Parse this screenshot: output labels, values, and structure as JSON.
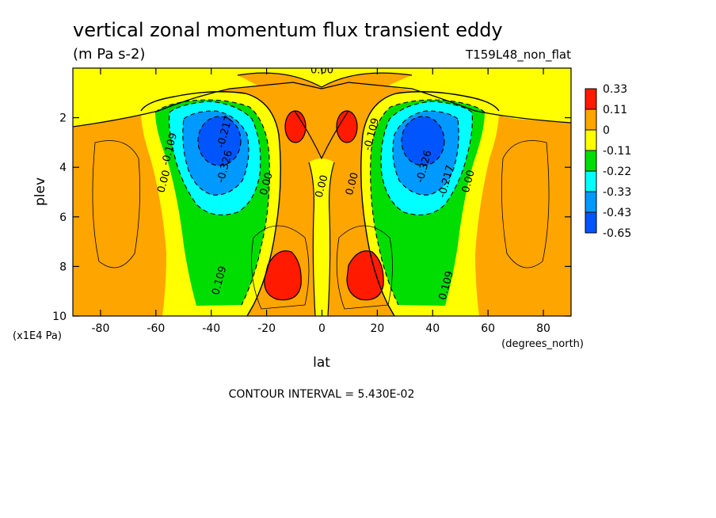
{
  "chart_data": {
    "type": "heatmap",
    "title": "vertical zonal momentum flux transient eddy",
    "units": "(m Pa s-2)",
    "run_label": "T159L48_non_flat",
    "xlabel": "lat",
    "ylabel": "plev",
    "x_units": "(degrees_north)",
    "y_units": "(x1E4 Pa)",
    "xlim": [
      -90,
      90
    ],
    "ylim": [
      10,
      0
    ],
    "x_ticks": [
      -80,
      -60,
      -40,
      -20,
      0,
      20,
      40,
      60,
      80
    ],
    "y_ticks": [
      2,
      4,
      6,
      8,
      10
    ],
    "contour_interval_text": "CONTOUR INTERVAL = 5.430E-02",
    "colorbar": {
      "labels": [
        "0.33",
        "0.11",
        "0",
        "-0.11",
        "-0.22",
        "-0.33",
        "-0.43",
        "-0.65"
      ],
      "colors": [
        "#ff1a00",
        "#ffa500",
        "#ffff00",
        "#00dd00",
        "#00ffff",
        "#0099ff",
        "#0055ff"
      ]
    },
    "contour_labels": [
      {
        "text": "0.00",
        "lat": 0,
        "plev": 0.2
      },
      {
        "text": "-0.109",
        "lat": -54,
        "plev": 3.3
      },
      {
        "text": "0.00",
        "lat": -56,
        "plev": 4.6
      },
      {
        "text": "-0.217",
        "lat": -34,
        "plev": 2.6
      },
      {
        "text": "-0.326",
        "lat": -34,
        "plev": 4.0
      },
      {
        "text": "0.00",
        "lat": -19,
        "plev": 4.7
      },
      {
        "text": "0.00",
        "lat": 1,
        "plev": 4.8
      },
      {
        "text": "0.00",
        "lat": 12,
        "plev": 4.7
      },
      {
        "text": "-0.109",
        "lat": 19,
        "plev": 2.7
      },
      {
        "text": "-0.326",
        "lat": 38,
        "plev": 4.0
      },
      {
        "text": "-0.217",
        "lat": 46,
        "plev": 4.6
      },
      {
        "text": "0.00",
        "lat": 54,
        "plev": 4.6
      },
      {
        "text": "0.109",
        "lat": -36,
        "plev": 8.6
      },
      {
        "text": "0.109",
        "lat": 46,
        "plev": 8.8
      }
    ],
    "features": [
      {
        "kind": "min",
        "value": -0.65,
        "lat": -36,
        "plev": 3.0
      },
      {
        "kind": "min",
        "value": -0.65,
        "lat": 36,
        "plev": 3.0
      },
      {
        "kind": "max",
        "value": 0.33,
        "lat": -12,
        "plev": 2.5
      },
      {
        "kind": "max",
        "value": 0.33,
        "lat": 9,
        "plev": 2.5
      },
      {
        "kind": "max",
        "value": 0.33,
        "lat": -17,
        "plev": 8.5
      },
      {
        "kind": "max",
        "value": 0.33,
        "lat": 14,
        "plev": 8.5
      }
    ]
  }
}
